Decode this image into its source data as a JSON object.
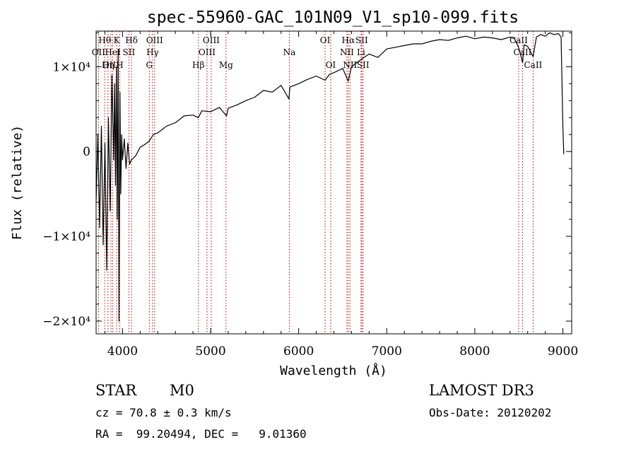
{
  "chart_data": {
    "type": "line",
    "title": "spec-55960-GAC_101N09_V1_sp10-099.fits",
    "xlabel": "Wavelength (Å)",
    "ylabel": "Flux (relative)",
    "xlim": [
      3700,
      9100
    ],
    "ylim": [
      -21500,
      14200
    ],
    "x_ticks": [
      {
        "value": 4000,
        "label": "4000"
      },
      {
        "value": 5000,
        "label": "5000"
      },
      {
        "value": 6000,
        "label": "6000"
      },
      {
        "value": 7000,
        "label": "7000"
      },
      {
        "value": 8000,
        "label": "8000"
      },
      {
        "value": 9000,
        "label": "9000"
      }
    ],
    "y_ticks": [
      {
        "value": 10000,
        "label": "1×10⁴"
      },
      {
        "value": 0,
        "label": "0"
      },
      {
        "value": -10000,
        "label": "−1×10⁴"
      },
      {
        "value": -20000,
        "label": "−2×10⁴"
      }
    ],
    "series": [
      {
        "name": "spectrum",
        "x": [
          3700,
          3720,
          3740,
          3760,
          3780,
          3800,
          3820,
          3840,
          3860,
          3880,
          3900,
          3910,
          3920,
          3930,
          3940,
          3950,
          3960,
          3970,
          3980,
          3990,
          4000,
          4020,
          4040,
          4060,
          4080,
          4100,
          4150,
          4200,
          4250,
          4300,
          4350,
          4400,
          4500,
          4600,
          4700,
          4800,
          4860,
          4900,
          5000,
          5100,
          5180,
          5200,
          5300,
          5400,
          5500,
          5600,
          5700,
          5800,
          5890,
          5900,
          6000,
          6100,
          6200,
          6300,
          6350,
          6400,
          6500,
          6563,
          6600,
          6700,
          6800,
          6900,
          7000,
          7100,
          7200,
          7300,
          7400,
          7500,
          7600,
          7700,
          7800,
          7900,
          8000,
          8100,
          8200,
          8300,
          8400,
          8450,
          8500,
          8542,
          8560,
          8600,
          8662,
          8700,
          8750,
          8800,
          8850,
          8900,
          8950,
          8980,
          9000,
          9010
        ],
        "y": [
          -6000,
          2000,
          -9000,
          3000,
          -11000,
          1000,
          -14000,
          4000,
          -7000,
          9000,
          -1000,
          8000,
          -4000,
          10000,
          -8000,
          12000,
          -20000,
          7000,
          -5000,
          2000,
          -1000,
          1500,
          -2000,
          1000,
          -1500,
          -1000,
          -500,
          500,
          800,
          1200,
          2000,
          2200,
          3000,
          3400,
          4200,
          4300,
          4000,
          4800,
          4700,
          5200,
          4200,
          5100,
          5500,
          6000,
          6400,
          7200,
          7000,
          7800,
          6200,
          7600,
          8000,
          8500,
          8900,
          8400,
          9100,
          9300,
          9800,
          8300,
          10000,
          10800,
          11500,
          11100,
          12100,
          12300,
          12500,
          12700,
          12700,
          13000,
          13200,
          13100,
          13400,
          13600,
          13300,
          13500,
          13400,
          13200,
          13500,
          13300,
          12200,
          10500,
          12600,
          12400,
          11200,
          13500,
          13800,
          13600,
          14000,
          13800,
          13900,
          13500,
          3000,
          -300
        ]
      }
    ],
    "emission_lines": [
      {
        "wavelength": 3727,
        "label": "OII",
        "row": 2
      },
      {
        "wavelength": 3798,
        "label": "Hθ",
        "row": 1
      },
      {
        "wavelength": 3835,
        "label": "Hη",
        "row": 3
      },
      {
        "wavelength": 3869,
        "label": "OIII",
        "row": 3
      },
      {
        "wavelength": 3889,
        "label": "HeI",
        "row": 2
      },
      {
        "wavelength": 3934,
        "label": "K",
        "row": 1
      },
      {
        "wavelength": 3969,
        "label": "H",
        "row": 3
      },
      {
        "wavelength": 4072,
        "label": "SII",
        "row": 2
      },
      {
        "wavelength": 4102,
        "label": "Hδ",
        "row": 1
      },
      {
        "wavelength": 4304,
        "label": "G",
        "row": 3
      },
      {
        "wavelength": 4341,
        "label": "Hγ",
        "row": 2
      },
      {
        "wavelength": 4364,
        "label": "OIII",
        "row": 1
      },
      {
        "wavelength": 4861,
        "label": "Hβ",
        "row": 3
      },
      {
        "wavelength": 4959,
        "label": "OIII",
        "row": 2
      },
      {
        "wavelength": 5007,
        "label": "OIII",
        "row": 1
      },
      {
        "wavelength": 5175,
        "label": "Mg",
        "row": 3
      },
      {
        "wavelength": 5894,
        "label": "Na",
        "row": 2
      },
      {
        "wavelength": 6300,
        "label": "OI",
        "row": 1
      },
      {
        "wavelength": 6364,
        "label": "OI",
        "row": 3
      },
      {
        "wavelength": 6548,
        "label": "NII",
        "row": 2
      },
      {
        "wavelength": 6563,
        "label": "Hα",
        "row": 1
      },
      {
        "wavelength": 6583,
        "label": "NII",
        "row": 3
      },
      {
        "wavelength": 6708,
        "label": "Li",
        "row": 2
      },
      {
        "wavelength": 6716,
        "label": "SII",
        "row": 1
      },
      {
        "wavelength": 6731,
        "label": "SII",
        "row": 3
      },
      {
        "wavelength": 8498,
        "label": "CaII",
        "row": 1
      },
      {
        "wavelength": 8542,
        "label": "CaII",
        "row": 2
      },
      {
        "wavelength": 8662,
        "label": "CaII",
        "row": 3
      }
    ],
    "line_color": "#000000",
    "marker_color": "#c00000"
  },
  "info": {
    "class_label": "STAR",
    "subclass": "M0",
    "survey": "LAMOST DR3",
    "redshift_text": "cz = 70.8 ± 0.3 km/s",
    "obs_date_text": "Obs-Date: 20120202",
    "coords_text": "RA =  99.20494, DEC =   9.01360"
  }
}
